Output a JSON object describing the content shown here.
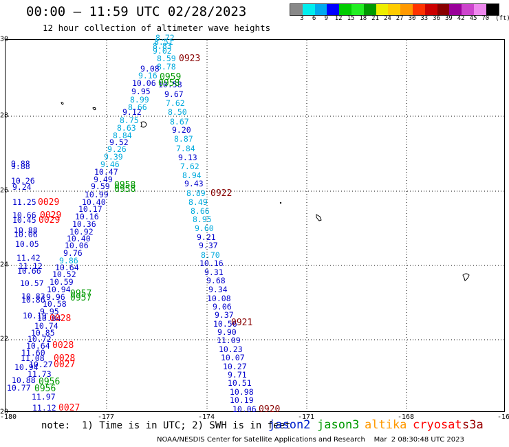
{
  "header": {
    "title": "00:00 – 11:59 UTC 02/28/2023",
    "subtitle": "12 hour collection of altimeter wave heights"
  },
  "color_scale": {
    "unit": "(ft)",
    "colors": [
      "#888888",
      "#00eeee",
      "#00aaee",
      "#0000ff",
      "#00cc00",
      "#22ee22",
      "#009900",
      "#eeee00",
      "#ffcc00",
      "#ff9900",
      "#ff3300",
      "#cc0000",
      "#880000",
      "#990099",
      "#cc44cc",
      "#ee88ee",
      "#000000"
    ],
    "labels": [
      "3",
      "6",
      "9",
      "12",
      "15",
      "18",
      "21",
      "24",
      "27",
      "30",
      "33",
      "36",
      "39",
      "42",
      "45",
      "70"
    ]
  },
  "axes": {
    "lat_labels": [
      "30",
      "28",
      "26",
      "24",
      "22",
      "20"
    ],
    "lon_labels": [
      "-180",
      "-177",
      "-174",
      "-171",
      "-168",
      "-16"
    ]
  },
  "passes": [
    {
      "time": "0923",
      "color": "#880000",
      "xy": [
        260,
        86
      ]
    },
    {
      "time": "0922",
      "color": "#880000",
      "xy": [
        306,
        282
      ]
    },
    {
      "time": "0921",
      "color": "#880000",
      "xy": [
        336,
        470
      ]
    },
    {
      "time": "0920",
      "color": "#880000",
      "xy": [
        376,
        596
      ]
    },
    {
      "time": "0959",
      "color": "#009900",
      "xy": [
        232,
        113
      ]
    },
    {
      "time": "0958",
      "color": "#009900",
      "xy": [
        230,
        122
      ]
    },
    {
      "time": "0958",
      "color": "#009900",
      "xy": [
        166,
        270
      ]
    },
    {
      "time": "0958",
      "color": "#009900",
      "xy": [
        166,
        276
      ]
    },
    {
      "time": "0957",
      "color": "#009900",
      "xy": [
        102,
        428
      ]
    },
    {
      "time": "0957",
      "color": "#009900",
      "xy": [
        102,
        434
      ]
    },
    {
      "time": "0956",
      "color": "#009900",
      "xy": [
        56,
        556
      ]
    },
    {
      "time": "0956",
      "color": "#009900",
      "xy": [
        50,
        566
      ]
    },
    {
      "time": "0029",
      "color": "#ff0000",
      "xy": [
        55,
        295
      ]
    },
    {
      "time": "0029",
      "color": "#ff0000",
      "xy": [
        58,
        314
      ]
    },
    {
      "time": "0029",
      "color": "#ff0000",
      "xy": [
        56,
        321
      ]
    },
    {
      "time": "0028",
      "color": "#ff0000",
      "xy": [
        72,
        464
      ]
    },
    {
      "time": "0028",
      "color": "#ff0000",
      "xy": [
        76,
        503
      ]
    },
    {
      "time": "0028",
      "color": "#ff0000",
      "xy": [
        78,
        522
      ]
    },
    {
      "time": "0027",
      "color": "#ff0000",
      "xy": [
        78,
        531
      ]
    },
    {
      "time": "0027",
      "color": "#ff0000",
      "xy": [
        85,
        594
      ]
    }
  ],
  "readings": [
    {
      "v": "8.72",
      "c": "#00aadd",
      "xy": [
        226,
        56
      ]
    },
    {
      "v": "8.51",
      "c": "#00aadd",
      "xy": [
        224,
        62
      ]
    },
    {
      "v": "8.83",
      "c": "#00aadd",
      "xy": [
        222,
        68
      ]
    },
    {
      "v": "9.02",
      "c": "#00aadd",
      "xy": [
        222,
        75
      ]
    },
    {
      "v": "8.59",
      "c": "#00aadd",
      "xy": [
        228,
        86
      ]
    },
    {
      "v": "8.78",
      "c": "#00aadd",
      "xy": [
        228,
        98
      ]
    },
    {
      "v": "9.08",
      "c": "#0000cc",
      "xy": [
        204,
        101
      ]
    },
    {
      "v": "9.16",
      "c": "#00aadd",
      "xy": [
        201,
        111
      ]
    },
    {
      "v": "10.06",
      "c": "#0000cc",
      "xy": [
        192,
        122
      ]
    },
    {
      "v": "10.58",
      "c": "#0000cc",
      "xy": [
        230,
        124
      ]
    },
    {
      "v": "9.95",
      "c": "#0000cc",
      "xy": [
        191,
        134
      ]
    },
    {
      "v": "9.67",
      "c": "#0000cc",
      "xy": [
        239,
        138
      ]
    },
    {
      "v": "8.99",
      "c": "#00aadd",
      "xy": [
        189,
        146
      ]
    },
    {
      "v": "8.66",
      "c": "#00aadd",
      "xy": [
        186,
        157
      ]
    },
    {
      "v": "7.62",
      "c": "#00aadd",
      "xy": [
        241,
        151
      ]
    },
    {
      "v": "9.12",
      "c": "#0000cc",
      "xy": [
        178,
        164
      ]
    },
    {
      "v": "8.50",
      "c": "#00aadd",
      "xy": [
        244,
        164
      ]
    },
    {
      "v": "8.75",
      "c": "#00aadd",
      "xy": [
        174,
        176
      ]
    },
    {
      "v": "8.67",
      "c": "#00aadd",
      "xy": [
        247,
        178
      ]
    },
    {
      "v": "8.63",
      "c": "#00aadd",
      "xy": [
        170,
        187
      ]
    },
    {
      "v": "9.20",
      "c": "#0000cc",
      "xy": [
        250,
        190
      ]
    },
    {
      "v": "8.84",
      "c": "#00aadd",
      "xy": [
        164,
        198
      ]
    },
    {
      "v": "8.87",
      "c": "#00aadd",
      "xy": [
        253,
        203
      ]
    },
    {
      "v": "9.52",
      "c": "#0000cc",
      "xy": [
        159,
        208
      ]
    },
    {
      "v": "7.84",
      "c": "#00aadd",
      "xy": [
        256,
        217
      ]
    },
    {
      "v": "9.26",
      "c": "#00aadd",
      "xy": [
        156,
        218
      ]
    },
    {
      "v": "9.39",
      "c": "#00aadd",
      "xy": [
        151,
        229
      ]
    },
    {
      "v": "9.13",
      "c": "#0000cc",
      "xy": [
        259,
        230
      ]
    },
    {
      "v": "9.46",
      "c": "#00aadd",
      "xy": [
        146,
        240
      ]
    },
    {
      "v": "7.62",
      "c": "#00aadd",
      "xy": [
        262,
        243
      ]
    },
    {
      "v": "10.47",
      "c": "#0000cc",
      "xy": [
        137,
        251
      ]
    },
    {
      "v": "8.94",
      "c": "#00aadd",
      "xy": [
        265,
        256
      ]
    },
    {
      "v": "9.49",
      "c": "#0000cc",
      "xy": [
        136,
        262
      ]
    },
    {
      "v": "9.43",
      "c": "#0000cc",
      "xy": [
        268,
        268
      ]
    },
    {
      "v": "9.59",
      "c": "#0000cc",
      "xy": [
        132,
        272
      ]
    },
    {
      "v": "8.89",
      "c": "#00aadd",
      "xy": [
        271,
        282
      ]
    },
    {
      "v": "10.99",
      "c": "#0000cc",
      "xy": [
        123,
        284
      ]
    },
    {
      "v": "10.40",
      "c": "#0000cc",
      "xy": [
        119,
        295
      ]
    },
    {
      "v": "8.49",
      "c": "#00aadd",
      "xy": [
        274,
        295
      ]
    },
    {
      "v": "10.17",
      "c": "#0000cc",
      "xy": [
        114,
        305
      ]
    },
    {
      "v": "8.66",
      "c": "#00aadd",
      "xy": [
        277,
        308
      ]
    },
    {
      "v": "10.16",
      "c": "#0000cc",
      "xy": [
        109,
        316
      ]
    },
    {
      "v": "8.95",
      "c": "#00aadd",
      "xy": [
        280,
        320
      ]
    },
    {
      "v": "10.36",
      "c": "#0000cc",
      "xy": [
        105,
        327
      ]
    },
    {
      "v": "9.60",
      "c": "#00aadd",
      "xy": [
        283,
        333
      ]
    },
    {
      "v": "10.92",
      "c": "#0000cc",
      "xy": [
        101,
        338
      ]
    },
    {
      "v": "9.21",
      "c": "#0000cc",
      "xy": [
        286,
        346
      ]
    },
    {
      "v": "10.40",
      "c": "#0000cc",
      "xy": [
        97,
        348
      ]
    },
    {
      "v": "10.06",
      "c": "#0000cc",
      "xy": [
        94,
        358
      ]
    },
    {
      "v": "9.37",
      "c": "#0000cc",
      "xy": [
        289,
        358
      ]
    },
    {
      "v": "9.76",
      "c": "#0000cc",
      "xy": [
        92,
        369
      ]
    },
    {
      "v": "8.70",
      "c": "#00aadd",
      "xy": [
        292,
        372
      ]
    },
    {
      "v": "9.86",
      "c": "#00aadd",
      "xy": [
        86,
        380
      ]
    },
    {
      "v": "10.16",
      "c": "#0000cc",
      "xy": [
        290,
        384
      ]
    },
    {
      "v": "10.64",
      "c": "#0000cc",
      "xy": [
        80,
        390
      ]
    },
    {
      "v": "9.31",
      "c": "#0000cc",
      "xy": [
        297,
        397
      ]
    },
    {
      "v": "10.52",
      "c": "#0000cc",
      "xy": [
        76,
        400
      ]
    },
    {
      "v": "9.68",
      "c": "#0000cc",
      "xy": [
        300,
        409
      ]
    },
    {
      "v": "10.59",
      "c": "#0000cc",
      "xy": [
        72,
        411
      ]
    },
    {
      "v": "10.94",
      "c": "#0000cc",
      "xy": [
        68,
        422
      ]
    },
    {
      "v": "9.34",
      "c": "#0000cc",
      "xy": [
        303,
        422
      ]
    },
    {
      "v": "9.96",
      "c": "#0000cc",
      "xy": [
        67,
        433
      ]
    },
    {
      "v": "10.08",
      "c": "#0000cc",
      "xy": [
        301,
        435
      ]
    },
    {
      "v": "10.58",
      "c": "#0000cc",
      "xy": [
        62,
        443
      ]
    },
    {
      "v": "9.06",
      "c": "#0000cc",
      "xy": [
        309,
        447
      ]
    },
    {
      "v": "9.95",
      "c": "#0000cc",
      "xy": [
        58,
        454
      ]
    },
    {
      "v": "9.37",
      "c": "#0000cc",
      "xy": [
        312,
        459
      ]
    },
    {
      "v": "10.84",
      "c": "#0000cc",
      "xy": [
        54,
        464
      ]
    },
    {
      "v": "10.56",
      "c": "#0000cc",
      "xy": [
        310,
        472
      ]
    },
    {
      "v": "10.74",
      "c": "#0000cc",
      "xy": [
        50,
        475
      ]
    },
    {
      "v": "9.90",
      "c": "#0000cc",
      "xy": [
        316,
        484
      ]
    },
    {
      "v": "10.85",
      "c": "#0000cc",
      "xy": [
        45,
        485
      ]
    },
    {
      "v": "11.09",
      "c": "#0000cc",
      "xy": [
        315,
        496
      ]
    },
    {
      "v": "10.72",
      "c": "#0000cc",
      "xy": [
        40,
        494
      ]
    },
    {
      "v": "10.64",
      "c": "#0000cc",
      "xy": [
        38,
        504
      ]
    },
    {
      "v": "10.23",
      "c": "#0000cc",
      "xy": [
        318,
        509
      ]
    },
    {
      "v": "11.60",
      "c": "#0000cc",
      "xy": [
        31,
        514
      ]
    },
    {
      "v": "10.07",
      "c": "#0000cc",
      "xy": [
        321,
        521
      ]
    },
    {
      "v": "11.08",
      "c": "#0000cc",
      "xy": [
        30,
        522
      ]
    },
    {
      "v": "10.27",
      "c": "#0000cc",
      "xy": [
        42,
        531
      ]
    },
    {
      "v": "10.27",
      "c": "#0000cc",
      "xy": [
        324,
        534
      ]
    },
    {
      "v": "10.94",
      "c": "#0000cc",
      "xy": [
        21,
        535
      ]
    },
    {
      "v": "11.73",
      "c": "#0000cc",
      "xy": [
        40,
        545
      ]
    },
    {
      "v": "9.71",
      "c": "#0000cc",
      "xy": [
        331,
        546
      ]
    },
    {
      "v": "10.88",
      "c": "#0000cc",
      "xy": [
        17,
        554
      ]
    },
    {
      "v": "10.51",
      "c": "#0000cc",
      "xy": [
        331,
        558
      ]
    },
    {
      "v": "10.77",
      "c": "#0000cc",
      "xy": [
        10,
        565
      ]
    },
    {
      "v": "10.98",
      "c": "#0000cc",
      "xy": [
        334,
        571
      ]
    },
    {
      "v": "11.97",
      "c": "#0000cc",
      "xy": [
        46,
        578
      ]
    },
    {
      "v": "10.19",
      "c": "#0000cc",
      "xy": [
        334,
        583
      ]
    },
    {
      "v": "11.12",
      "c": "#0000cc",
      "xy": [
        47,
        594
      ]
    },
    {
      "v": "10.06",
      "c": "#0000cc",
      "xy": [
        338,
        596
      ]
    },
    {
      "v": "9.88",
      "c": "#0000cc",
      "xy": [
        16,
        239
      ]
    },
    {
      "v": "9.88",
      "c": "#0000cc",
      "xy": [
        16,
        243
      ]
    },
    {
      "v": "10.26",
      "c": "#0000cc",
      "xy": [
        16,
        264
      ]
    },
    {
      "v": "9.24",
      "c": "#0000cc",
      "xy": [
        18,
        273
      ]
    },
    {
      "v": "11.25",
      "c": "#0000cc",
      "xy": [
        18,
        295
      ]
    },
    {
      "v": "10.66",
      "c": "#0000cc",
      "xy": [
        18,
        314
      ]
    },
    {
      "v": "10.45",
      "c": "#0000cc",
      "xy": [
        18,
        321
      ]
    },
    {
      "v": "10.88",
      "c": "#0000cc",
      "xy": [
        20,
        336
      ]
    },
    {
      "v": "10.06",
      "c": "#0000cc",
      "xy": [
        20,
        342
      ]
    },
    {
      "v": "10.05",
      "c": "#0000cc",
      "xy": [
        22,
        356
      ]
    },
    {
      "v": "11.42",
      "c": "#0000cc",
      "xy": [
        24,
        376
      ]
    },
    {
      "v": "11.12",
      "c": "#0000cc",
      "xy": [
        27,
        388
      ]
    },
    {
      "v": "10.66",
      "c": "#0000cc",
      "xy": [
        25,
        395
      ]
    },
    {
      "v": "10.57",
      "c": "#0000cc",
      "xy": [
        29,
        413
      ]
    },
    {
      "v": "10.83",
      "c": "#0000cc",
      "xy": [
        31,
        432
      ]
    },
    {
      "v": "10.86",
      "c": "#0000cc",
      "xy": [
        31,
        437
      ]
    },
    {
      "v": "10.19",
      "c": "#0000cc",
      "xy": [
        33,
        460
      ]
    }
  ],
  "legend": {
    "note": "note:  1) Time is in UTC; 2) SWH is in feet",
    "satellites": [
      {
        "name": "jason2",
        "color": "#0022cc"
      },
      {
        "name": "jason3",
        "color": "#009900"
      },
      {
        "name": "altika",
        "color": "#ff9900"
      },
      {
        "name": "cryosat",
        "color": "#ff0000"
      },
      {
        "name": "s3a",
        "color": "#990000"
      }
    ]
  },
  "credit": "NOAA/NESDIS Center for Satellite Applications and Research    Mar  2 08:30:48 UTC 2023"
}
